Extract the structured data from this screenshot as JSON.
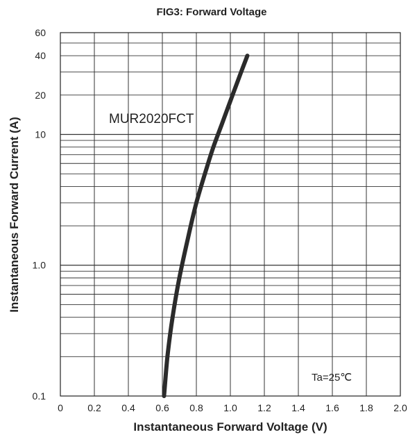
{
  "chart_data": {
    "type": "line",
    "title": "FIG3: Forward Voltage",
    "xlabel": "Instantaneous Forward Voltage (V)",
    "ylabel": "Instantaneous Forward Current (A)",
    "xlim": [
      0,
      2.0
    ],
    "ylim": [
      0.1,
      60
    ],
    "yscale": "log",
    "grid": true,
    "x_ticks": [
      "0",
      "0.2",
      "0.4",
      "0.6",
      "0.8",
      "1.0",
      "1.2",
      "1.4",
      "1.6",
      "1.8",
      "2.0"
    ],
    "y_ticks": [
      {
        "value": 0.1,
        "label": "0.1"
      },
      {
        "value": 1,
        "label": "1.0"
      },
      {
        "value": 10,
        "label": "10"
      },
      {
        "value": 20,
        "label": "20"
      },
      {
        "value": 40,
        "label": "40"
      },
      {
        "value": 60,
        "label": "60"
      }
    ],
    "series": [
      {
        "name": "MUR2020FCT",
        "color": "#2b2b2b",
        "x": [
          0.61,
          0.63,
          0.66,
          0.7,
          0.75,
          0.8,
          0.86,
          0.9,
          0.95,
          1.0,
          1.05,
          1.1
        ],
        "y": [
          0.1,
          0.2,
          0.4,
          0.8,
          1.6,
          3.0,
          5.5,
          8.0,
          12.0,
          18.0,
          27.0,
          40.0
        ]
      }
    ],
    "annotations": [
      "MUR2020FCT",
      "Ta=25℃"
    ]
  }
}
